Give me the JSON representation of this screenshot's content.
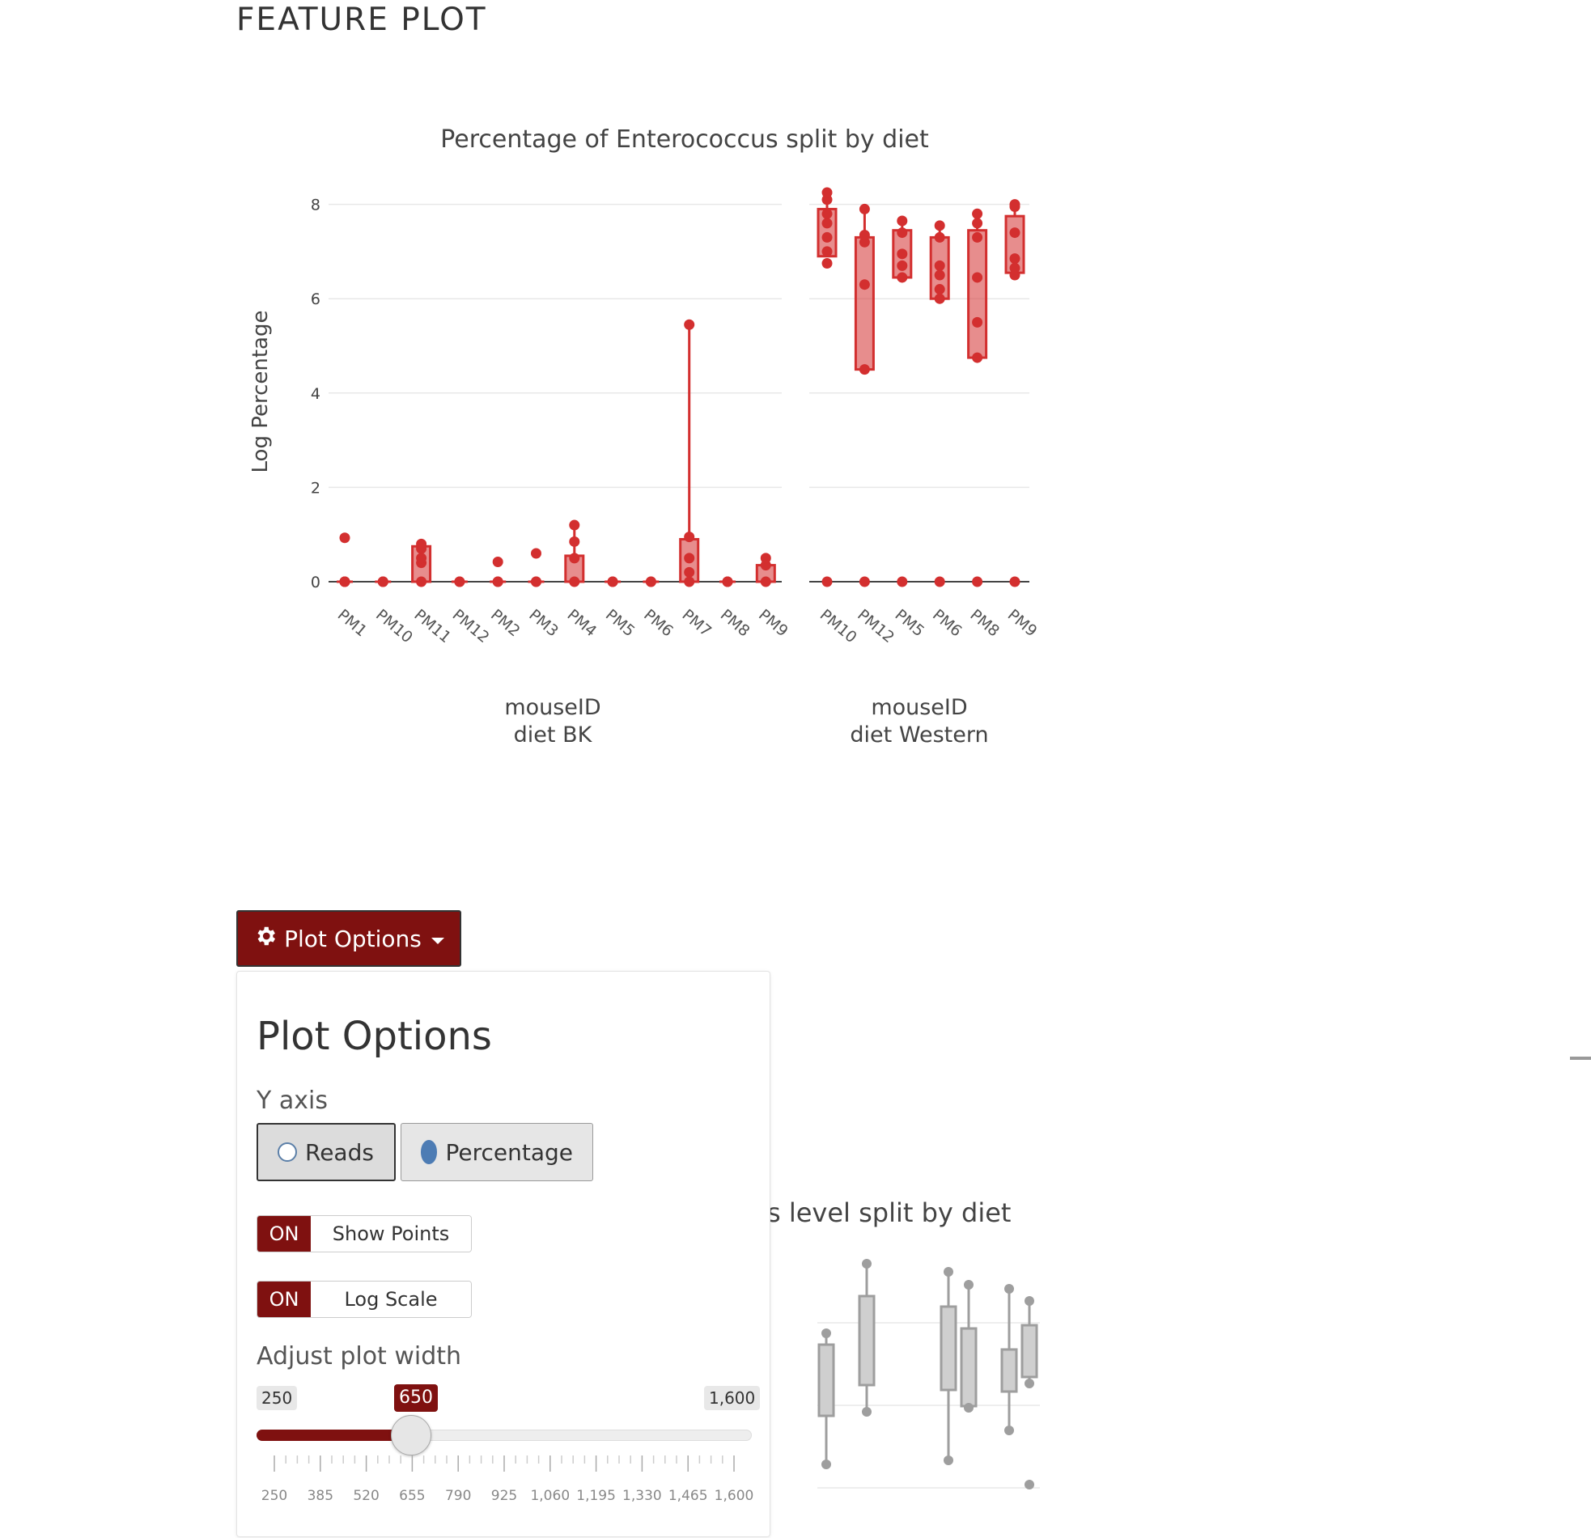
{
  "page": {
    "title": "FEATURE PLOT"
  },
  "chart_data": {
    "type": "box",
    "title": "Percentage of Enterococcus split by diet",
    "ylabel": "Log Percentage",
    "ylim": [
      -0.5,
      8.5
    ],
    "yticks": [
      0,
      2,
      4,
      6,
      8
    ],
    "color": "#d32f2f",
    "panels": [
      {
        "name": "BK",
        "xlabel_line1": "mouseID",
        "xlabel_line2": "diet BK",
        "categories": [
          "PM1",
          "PM10",
          "PM11",
          "PM12",
          "PM2",
          "PM3",
          "PM4",
          "PM5",
          "PM6",
          "PM7",
          "PM8",
          "PM9"
        ],
        "boxes": [
          {
            "q1": 0,
            "q3": 0,
            "points": [
              0,
              0,
              0,
              0.93
            ]
          },
          {
            "q1": 0,
            "q3": 0,
            "points": [
              0,
              0,
              0
            ]
          },
          {
            "q1": 0,
            "q3": 0.75,
            "points": [
              0,
              0.4,
              0.5,
              0.7,
              0.8
            ]
          },
          {
            "q1": 0,
            "q3": 0,
            "points": [
              0,
              0
            ]
          },
          {
            "q1": 0,
            "q3": 0,
            "points": [
              0,
              0,
              0.42
            ]
          },
          {
            "q1": 0,
            "q3": 0,
            "points": [
              0,
              0,
              0.6
            ]
          },
          {
            "q1": 0,
            "q3": 0.55,
            "points": [
              0,
              0.5,
              0.85,
              1.2
            ]
          },
          {
            "q1": 0,
            "q3": 0,
            "points": [
              0,
              0
            ]
          },
          {
            "q1": 0,
            "q3": 0,
            "points": [
              0,
              0
            ]
          },
          {
            "q1": 0,
            "q3": 0.9,
            "points": [
              0,
              0.2,
              0.5,
              0.95,
              5.45
            ]
          },
          {
            "q1": 0,
            "q3": 0,
            "points": [
              0,
              0
            ]
          },
          {
            "q1": 0,
            "q3": 0.35,
            "points": [
              0,
              0.35,
              0.5
            ]
          }
        ]
      },
      {
        "name": "Western",
        "xlabel_line1": "mouseID",
        "xlabel_line2": "diet Western",
        "categories": [
          "PM10",
          "PM12",
          "PM5",
          "PM6",
          "PM8",
          "PM9"
        ],
        "boxes": [
          {
            "q1": 6.9,
            "q3": 7.9,
            "points": [
              6.75,
              7.0,
              7.3,
              7.6,
              7.8,
              8.1,
              8.25,
              0
            ]
          },
          {
            "q1": 4.5,
            "q3": 7.3,
            "points": [
              4.5,
              6.3,
              7.2,
              7.35,
              7.9,
              0
            ]
          },
          {
            "q1": 6.45,
            "q3": 7.45,
            "points": [
              6.45,
              6.7,
              6.95,
              7.4,
              7.65,
              0
            ]
          },
          {
            "q1": 6.0,
            "q3": 7.3,
            "points": [
              6.0,
              6.2,
              6.5,
              6.7,
              7.3,
              7.55,
              0
            ]
          },
          {
            "q1": 4.75,
            "q3": 7.45,
            "points": [
              4.75,
              5.5,
              6.45,
              7.3,
              7.6,
              7.8,
              0
            ]
          },
          {
            "q1": 6.55,
            "q3": 7.75,
            "points": [
              6.5,
              6.65,
              6.85,
              7.4,
              7.95,
              8.0,
              0
            ]
          }
        ]
      }
    ]
  },
  "background_chart": {
    "title_fragment": "s level split by diet",
    "color": "#9e9e9e"
  },
  "plot_options": {
    "button_label": "Plot Options",
    "heading": "Plot Options",
    "y_axis": {
      "label": "Y axis",
      "options": [
        "Reads",
        "Percentage"
      ],
      "selected": "Percentage"
    },
    "show_points": {
      "state": "ON",
      "label": "Show Points"
    },
    "log_scale": {
      "state": "ON",
      "label": "Log Scale"
    },
    "plot_width": {
      "label": "Adjust plot width",
      "min": "250",
      "max": "1,600",
      "value": "650",
      "grid_labels": [
        "250",
        "385",
        "520",
        "655",
        "790",
        "925",
        "1,060",
        "1,195",
        "1,330",
        "1,465",
        "1,600"
      ]
    }
  }
}
